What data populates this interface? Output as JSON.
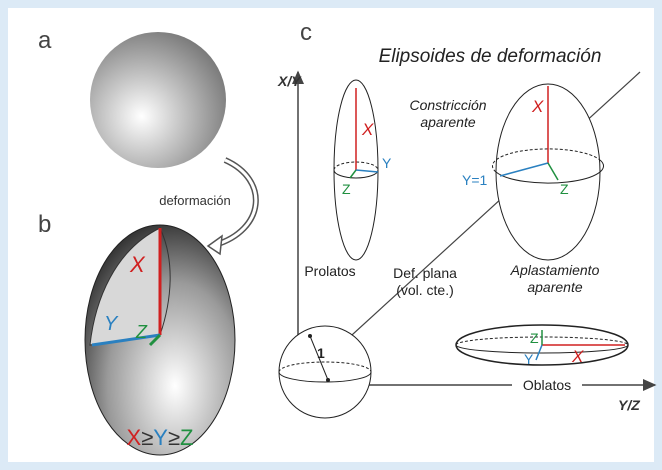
{
  "panels": [
    {
      "label": "a"
    },
    {
      "label": "b",
      "axes": [
        "X",
        "Y",
        "Z"
      ],
      "relation": [
        "X",
        "≥",
        "Y",
        "≥",
        "Z"
      ]
    },
    {
      "label": "c"
    }
  ],
  "arrow_label": "deformación",
  "diagram": {
    "title": "Elipsoides de deformación",
    "y_axis": "X/Y",
    "x_axis": "Y/Z",
    "constriction": [
      "Constricción",
      "aparente"
    ],
    "flattening": [
      "Aplastamiento",
      "aparente"
    ],
    "plane": [
      "Def. plana",
      "(vol. cte.)"
    ],
    "prolate": {
      "name": "Prolatos",
      "axes": [
        "X",
        "Y",
        "Z"
      ]
    },
    "constriction_ellipsoid": {
      "axes": [
        "X",
        "Y=1",
        "Z"
      ]
    },
    "oblate": {
      "name": "Oblatos",
      "axes": [
        "X",
        "Y",
        "Z"
      ]
    },
    "sphere_radius": "1"
  }
}
